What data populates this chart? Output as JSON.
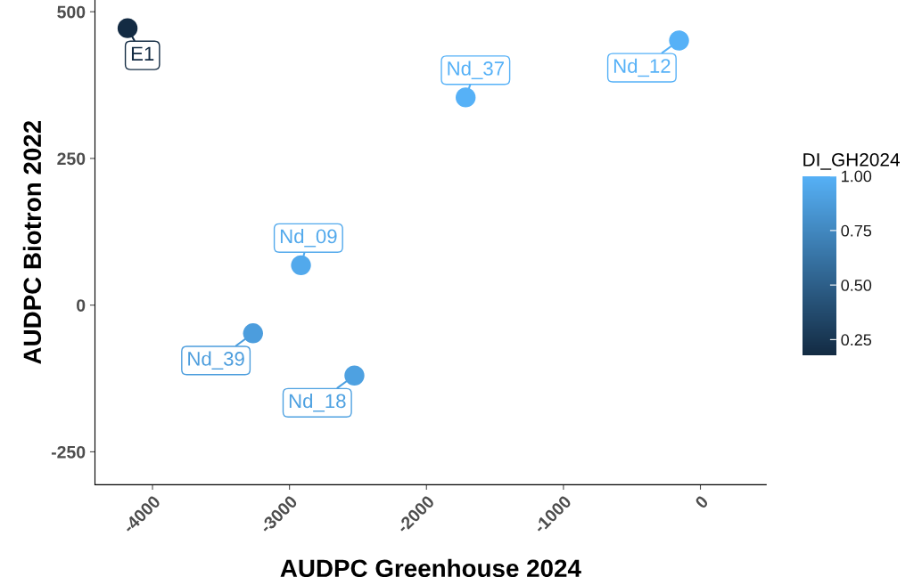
{
  "chart_data": {
    "type": "scatter",
    "xlabel": "AUDPC Greenhouse 2024",
    "ylabel": "AUDPC Biotron 2022",
    "clabel": "DI_GH2024",
    "x": [
      -4182,
      -1714,
      -156,
      -2916,
      -3266,
      -2526
    ],
    "values": [
      472,
      354,
      451,
      68,
      -48,
      -120
    ],
    "cvalues": [
      0.18,
      1.0,
      1.0,
      0.95,
      0.88,
      0.9
    ],
    "clim": [
      0.18,
      1.0
    ],
    "cticks": [
      {
        "value": 0.25,
        "label": "0.25"
      },
      {
        "value": 0.5,
        "label": "0.50"
      },
      {
        "value": 0.75,
        "label": "0.75"
      },
      {
        "value": 1.0,
        "label": "1.00"
      }
    ],
    "colors": [
      "#132b43",
      "#56b1f7",
      "#56b1f7",
      "#52a9ec",
      "#4c9ddd",
      "#4ea1e1"
    ],
    "xlim": [
      -4420,
      480
    ],
    "ylim": [
      -306,
      520
    ],
    "xticks": [
      -4000,
      -3000,
      -2000,
      -1000,
      0
    ],
    "yticks": [
      -250,
      0,
      250,
      500
    ],
    "marker": "circle",
    "grid": false,
    "annotations": [
      {
        "text": "E1",
        "x": -4182,
        "y": 472
      },
      {
        "text": "Nd_37",
        "x": -1714,
        "y": 354
      },
      {
        "text": "Nd_12",
        "x": -156,
        "y": 451
      },
      {
        "text": "Nd_09",
        "x": -2916,
        "y": 68
      },
      {
        "text": "Nd_39",
        "x": -3266,
        "y": -48
      },
      {
        "text": "Nd_18",
        "x": -2526,
        "y": -120
      }
    ]
  }
}
